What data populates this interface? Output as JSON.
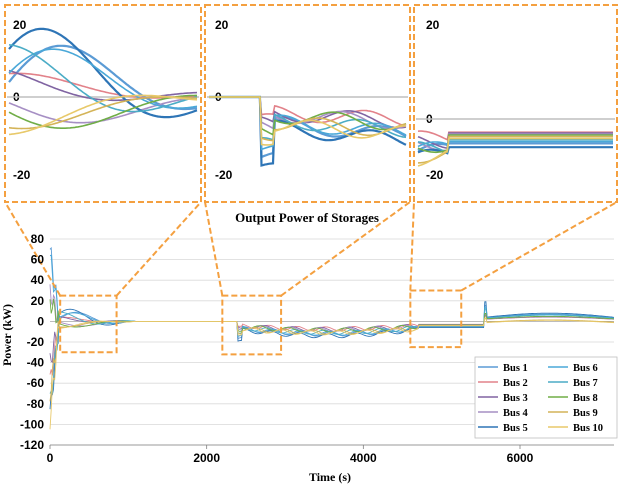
{
  "chart_data": {
    "type": "line",
    "title": "Output Power of Storages",
    "xlabel": "Time (s)",
    "ylabel": "Power (kW)",
    "xlim": [
      0,
      7200
    ],
    "ylim": [
      -120,
      80
    ],
    "xticks": [
      0,
      2000,
      4000,
      6000
    ],
    "yticks": [
      80,
      60,
      40,
      20,
      0,
      -20,
      -40,
      -60,
      -80,
      -100,
      -120
    ],
    "grid": "horizontal",
    "legend_position": "bottom-right",
    "series": [
      {
        "name": "Bus 1",
        "color": "#5b9bd5"
      },
      {
        "name": "Bus 2",
        "color": "#e2828a"
      },
      {
        "name": "Bus 3",
        "color": "#8064a2"
      },
      {
        "name": "Bus 4",
        "color": "#a68fc4"
      },
      {
        "name": "Bus 5",
        "color": "#2e75b6"
      },
      {
        "name": "Bus 6",
        "color": "#4aa8d8"
      },
      {
        "name": "Bus 7",
        "color": "#4bacc6"
      },
      {
        "name": "Bus 8",
        "color": "#70ad47"
      },
      {
        "name": "Bus 9",
        "color": "#d4b458"
      },
      {
        "name": "Bus 10",
        "color": "#e8c96a"
      }
    ],
    "zoom_boxes": [
      {
        "x": [
          130,
          850
        ],
        "y": [
          -30,
          25
        ]
      },
      {
        "x": [
          2200,
          2950
        ],
        "y": [
          -32,
          25
        ]
      },
      {
        "x": [
          4600,
          5250
        ],
        "y": [
          -25,
          30
        ]
      }
    ],
    "insets": [
      {
        "y_labels": [
          "20",
          "0",
          "-20"
        ]
      },
      {
        "y_labels": [
          "20",
          "0",
          "-20"
        ]
      },
      {
        "y_labels": [
          "20",
          "0",
          "-20"
        ]
      }
    ]
  }
}
